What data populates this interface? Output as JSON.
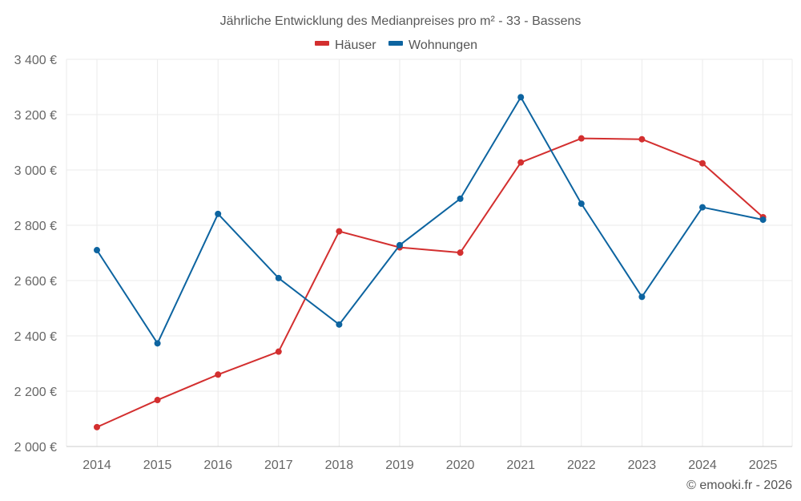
{
  "chart_data": {
    "type": "line",
    "title": "Jährliche Entwicklung des Medianpreises pro m² - 33 - Bassens",
    "xlabel": "",
    "ylabel": "",
    "categories": [
      "2014",
      "2015",
      "2016",
      "2017",
      "2018",
      "2019",
      "2020",
      "2021",
      "2022",
      "2023",
      "2024",
      "2025"
    ],
    "ylim": [
      2000,
      3400
    ],
    "yticks": [
      2000,
      2200,
      2400,
      2600,
      2800,
      3000,
      3200,
      3400
    ],
    "ytick_labels": [
      "2 000 €",
      "2 200 €",
      "2 400 €",
      "2 600 €",
      "2 800 €",
      "3 000 €",
      "3 200 €",
      "3 400 €"
    ],
    "grid": true,
    "legend_position": "top-center",
    "series": [
      {
        "name": "Häuser",
        "color": "#d32f2f",
        "values": [
          2070,
          2168,
          2260,
          2343,
          2778,
          2720,
          2701,
          3027,
          3114,
          3111,
          3024,
          2829
        ]
      },
      {
        "name": "Wohnungen",
        "color": "#0d64a0",
        "values": [
          2710,
          2373,
          2841,
          2609,
          2441,
          2728,
          2896,
          3263,
          2878,
          2541,
          2865,
          2820
        ]
      }
    ]
  },
  "credit": "© emooki.fr - 2026"
}
